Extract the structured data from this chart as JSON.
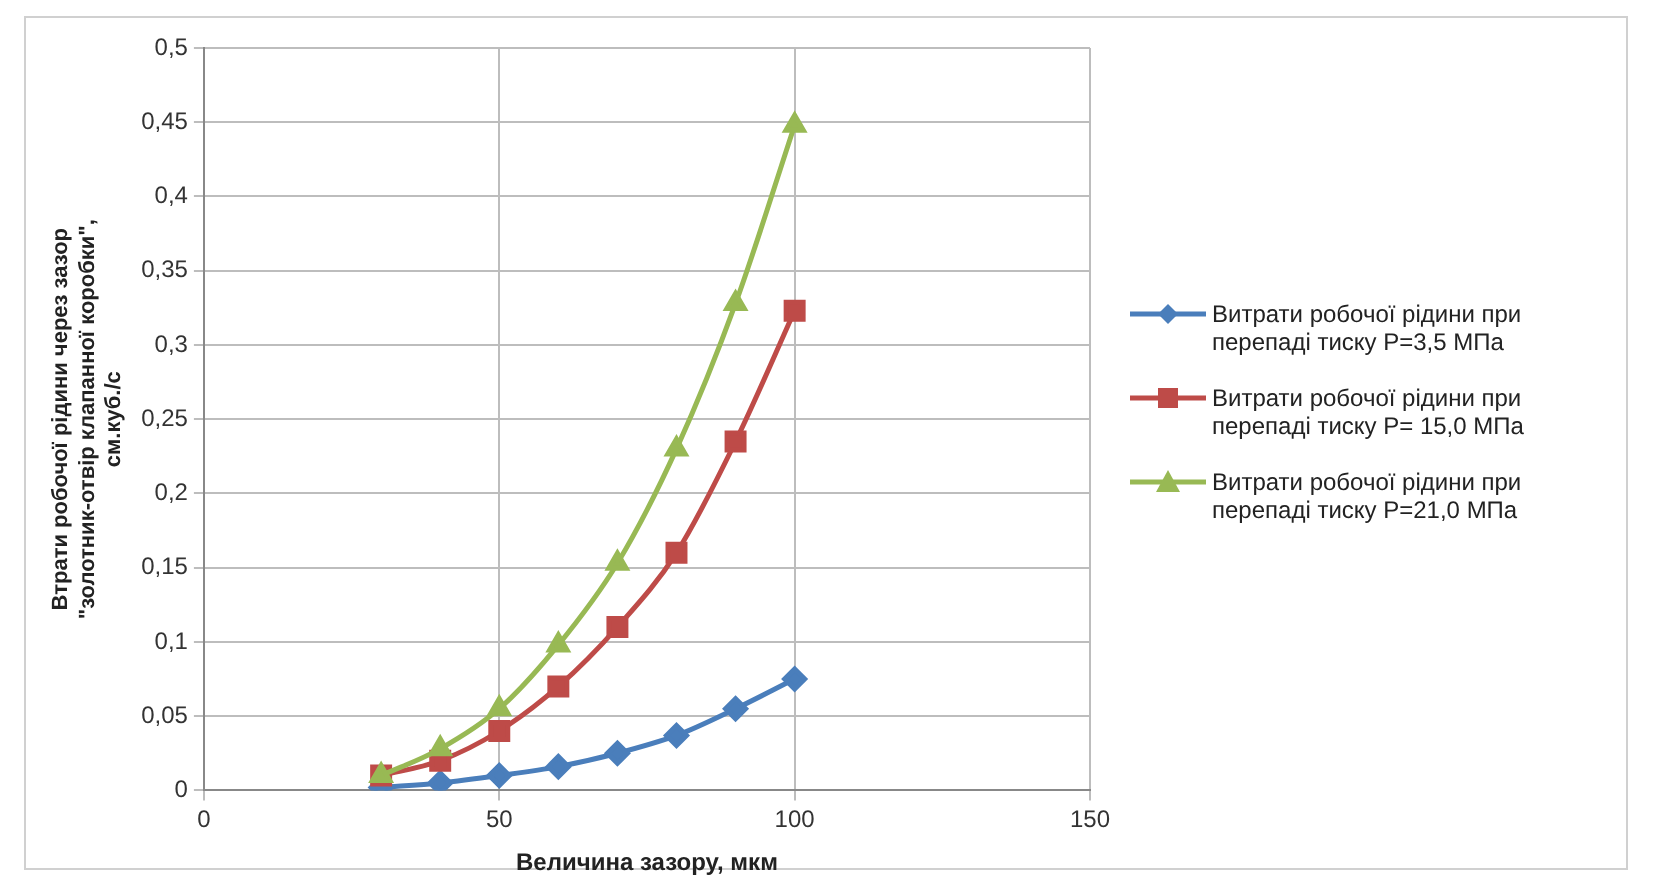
{
  "chart_data": {
    "type": "line",
    "xlabel": "Величина зазору, мкм",
    "ylabel": "Втрати робочої рідини через зазор\n\"золотник-отвір клапанної коробки\",\nсм.куб./с",
    "x": [
      30,
      40,
      50,
      60,
      70,
      80,
      90,
      100
    ],
    "series": [
      {
        "name": "Витрати робочої рідини при перепаді тиску Р=3,5 МПа",
        "color": "#4a7ebb",
        "marker": "diamond",
        "values": [
          0.002,
          0.005,
          0.01,
          0.016,
          0.025,
          0.037,
          0.055,
          0.075
        ]
      },
      {
        "name": "Витрати робочої рідини при перепаді тиску Р= 15,0 МПа",
        "color": "#be4b48",
        "marker": "square",
        "values": [
          0.01,
          0.02,
          0.04,
          0.07,
          0.11,
          0.16,
          0.235,
          0.323
        ]
      },
      {
        "name": "Витрати робочої рідини при перепаді тиску Р=21,0 МПа",
        "color": "#98b954",
        "marker": "triangle",
        "values": [
          0.01,
          0.028,
          0.055,
          0.098,
          0.153,
          0.23,
          0.328,
          0.448
        ]
      }
    ],
    "xlim": [
      0,
      150
    ],
    "xticks": [
      0,
      50,
      100,
      150
    ],
    "ylim": [
      0,
      0.5
    ],
    "yticks": [
      0,
      {
        "value": 0.05,
        "label": "0,05"
      },
      {
        "value": 0.1,
        "label": "0,1"
      },
      {
        "value": 0.15,
        "label": "0,15"
      },
      {
        "value": 0.2,
        "label": "0,2"
      },
      {
        "value": 0.25,
        "label": "0,25"
      },
      {
        "value": 0.3,
        "label": "0,3"
      },
      {
        "value": 0.35,
        "label": "0,35"
      },
      {
        "value": 0.4,
        "label": "0,4"
      },
      {
        "value": 0.45,
        "label": "0,45"
      },
      {
        "value": 0.5,
        "label": "0,5"
      }
    ],
    "grid": true,
    "legend": "right",
    "line_style": "solid"
  }
}
